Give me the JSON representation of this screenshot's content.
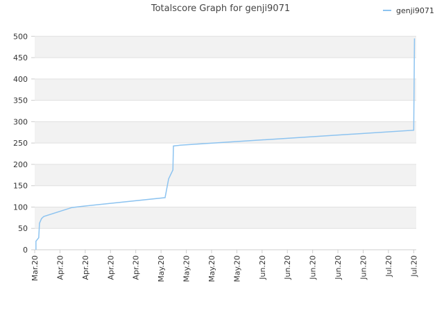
{
  "chart_data": {
    "type": "line",
    "title": "Totalscore Graph for genji9071",
    "series": [
      {
        "name": "genji9071",
        "color": "#8cc3f0",
        "x": [
          0.05,
          0.05,
          0.16,
          0.19,
          0.27,
          0.36,
          1.48,
          1.92,
          5.16,
          5.3,
          5.47,
          5.49,
          5.77,
          15.0,
          15.03
        ],
        "values": [
          0,
          20,
          28,
          62,
          73,
          78,
          99,
          102,
          122,
          166,
          187,
          243,
          245,
          280,
          495
        ]
      }
    ],
    "xlim": [
      0,
      15.1
    ],
    "xticks": [
      {
        "value": 0,
        "label": "Mar.20"
      },
      {
        "value": 1,
        "label": "Apr.20"
      },
      {
        "value": 2,
        "label": "Apr.20"
      },
      {
        "value": 3,
        "label": "Apr.20"
      },
      {
        "value": 4,
        "label": "Apr.20"
      },
      {
        "value": 5,
        "label": "May.20"
      },
      {
        "value": 6,
        "label": "May.20"
      },
      {
        "value": 7,
        "label": "May.20"
      },
      {
        "value": 8,
        "label": "May.20"
      },
      {
        "value": 9,
        "label": "Jun.20"
      },
      {
        "value": 10,
        "label": "Jun.20"
      },
      {
        "value": 11,
        "label": "Jun.20"
      },
      {
        "value": 12,
        "label": "Jun.20"
      },
      {
        "value": 13,
        "label": "Jun.20"
      },
      {
        "value": 14,
        "label": "Jul.20"
      },
      {
        "value": 15,
        "label": "Jul.20"
      }
    ],
    "ylim": [
      0,
      520
    ],
    "yticks": [
      0,
      50,
      100,
      150,
      200,
      250,
      300,
      350,
      400,
      450,
      500
    ],
    "grid": true
  }
}
